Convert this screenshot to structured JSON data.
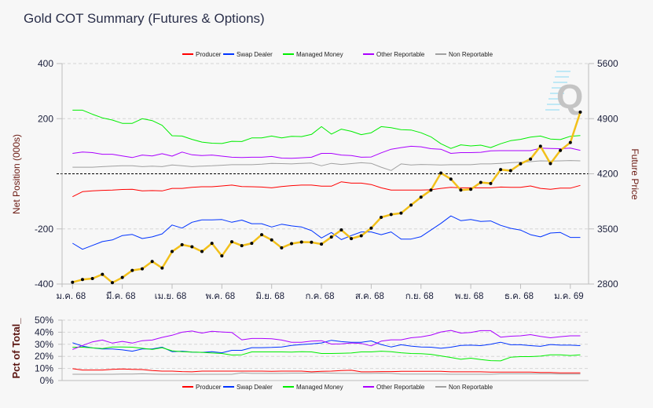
{
  "title": "Gold COT Summary (Futures & Options)",
  "watermark": "Q",
  "legend": [
    {
      "name": "Producer",
      "color": "#ff0000"
    },
    {
      "name": "Swap Dealer",
      "color": "#0033ff"
    },
    {
      "name": "Managed Money",
      "color": "#00ee00"
    },
    {
      "name": "Other Reportable",
      "color": "#aa00ff"
    },
    {
      "name": "Non Reportable",
      "color": "#a0a0a0"
    }
  ],
  "chart_data": [
    {
      "type": "line",
      "title": "Gold COT Summary (Futures & Options)",
      "ylabel": "Net Position (000s)",
      "y2label": "Future Price",
      "ylim": [
        -400,
        400
      ],
      "y2lim": [
        2800,
        5600
      ],
      "yticks": [
        "400",
        "200",
        "-200",
        "-400"
      ],
      "y2ticks": [
        "5600",
        "4900",
        "4200",
        "3500",
        "2800"
      ],
      "grid": true,
      "legend_position": "top",
      "xtick_labels": [
        "ม.ค. 68",
        "มี.ค. 68",
        "เม.ย. 68",
        "พ.ค. 68",
        "มิ.ย. 68",
        "ก.ค. 68",
        "ส.ค. 68",
        "ก.ย. 68",
        "พ.ย. 68",
        "ธ.ค. 68",
        "ม.ค. 69"
      ],
      "xtick_every": 5,
      "series": [
        {
          "name": "Producer",
          "color": "#ff0000",
          "values": [
            -83,
            -65,
            -62,
            -60,
            -59,
            -57,
            -56,
            -62,
            -61,
            -62,
            -53,
            -53,
            -49,
            -47,
            -47,
            -44,
            -41,
            -46,
            -47,
            -48,
            -51,
            -46,
            -43,
            -41,
            -41,
            -45,
            -45,
            -29,
            -34,
            -34,
            -39,
            -51,
            -59,
            -59,
            -59,
            -59,
            -58,
            -53,
            -49,
            -51,
            -51,
            -51,
            -51,
            -48,
            -49,
            -49,
            -44,
            -53,
            -56,
            -52,
            -52,
            -42
          ]
        },
        {
          "name": "Swap Dealer",
          "color": "#0033ff",
          "values": [
            -252,
            -274,
            -260,
            -246,
            -240,
            -224,
            -220,
            -235,
            -229,
            -218,
            -186,
            -197,
            -176,
            -167,
            -167,
            -166,
            -176,
            -168,
            -181,
            -181,
            -193,
            -183,
            -189,
            -193,
            -206,
            -233,
            -213,
            -239,
            -224,
            -211,
            -211,
            -221,
            -211,
            -237,
            -237,
            -228,
            -204,
            -180,
            -153,
            -170,
            -166,
            -173,
            -171,
            -187,
            -198,
            -204,
            -221,
            -229,
            -215,
            -213,
            -231,
            -231
          ]
        },
        {
          "name": "Managed Money",
          "color": "#00ee00",
          "values": [
            231,
            231,
            216,
            203,
            195,
            183,
            183,
            200,
            193,
            176,
            138,
            137,
            125,
            115,
            111,
            110,
            118,
            117,
            130,
            130,
            137,
            130,
            136,
            135,
            143,
            171,
            144,
            162,
            154,
            142,
            149,
            171,
            167,
            160,
            159,
            149,
            134,
            109,
            92,
            105,
            101,
            104,
            95,
            109,
            120,
            125,
            133,
            137,
            126,
            124,
            136,
            139
          ]
        },
        {
          "name": "Other Reportable",
          "color": "#aa00ff",
          "values": [
            74,
            79,
            77,
            71,
            71,
            65,
            59,
            68,
            65,
            73,
            64,
            79,
            69,
            66,
            68,
            64,
            60,
            59,
            60,
            60,
            63,
            57,
            56,
            58,
            60,
            74,
            74,
            68,
            66,
            60,
            61,
            76,
            89,
            95,
            100,
            98,
            91,
            89,
            74,
            77,
            77,
            78,
            83,
            84,
            84,
            84,
            84,
            93,
            92,
            91,
            93,
            85
          ]
        },
        {
          "name": "Non Reportable",
          "color": "#a0a0a0",
          "values": [
            24,
            24,
            24,
            26,
            28,
            29,
            29,
            26,
            28,
            26,
            32,
            29,
            26,
            28,
            29,
            31,
            33,
            33,
            33,
            35,
            38,
            37,
            36,
            38,
            39,
            29,
            38,
            34,
            37,
            40,
            38,
            24,
            12,
            36,
            32,
            34,
            33,
            32,
            33,
            33,
            33,
            36,
            36,
            38,
            40,
            42,
            44,
            47,
            46,
            47,
            48,
            47
          ]
        },
        {
          "name": "Future Price",
          "axis": "right",
          "color": "#f2c01a",
          "values": [
            2823,
            2857,
            2870,
            2923,
            2817,
            2883,
            2973,
            2993,
            3087,
            3003,
            3213,
            3300,
            3273,
            3213,
            3317,
            3157,
            3337,
            3287,
            3317,
            3427,
            3360,
            3260,
            3313,
            3333,
            3330,
            3307,
            3397,
            3487,
            3377,
            3413,
            3510,
            3647,
            3683,
            3700,
            3803,
            3903,
            3993,
            4210,
            4133,
            3993,
            4003,
            4090,
            4077,
            4253,
            4240,
            4327,
            4387,
            4550,
            4330,
            4497,
            4597,
            4983
          ]
        }
      ]
    },
    {
      "type": "line",
      "ylabel": "Pct of Total_",
      "ylim": [
        0,
        50
      ],
      "yticks": [
        "50%",
        "40%",
        "30%",
        "20%",
        "10%",
        "0%"
      ],
      "legend_position": "bottom",
      "series": [
        {
          "name": "Producer",
          "color": "#ff0000",
          "values": [
            9.8,
            8.7,
            8.7,
            8.7,
            9.3,
            9.6,
            9.3,
            9.1,
            8.3,
            7.8,
            7.8,
            7.4,
            7.2,
            7.8,
            7.8,
            7.8,
            7.8,
            7.8,
            7.8,
            7.8,
            7.6,
            7.8,
            7.8,
            7.8,
            7.2,
            7.6,
            7.8,
            8.3,
            8.5,
            7.2,
            7.2,
            7.4,
            7.4,
            7.6,
            7.6,
            7.6,
            7.6,
            7.6,
            7.2,
            7.2,
            7.2,
            7.2,
            7.0,
            7.0,
            7.0,
            7.0,
            7.0,
            6.7,
            6.7,
            6.3,
            6.3,
            6.3
          ]
        },
        {
          "name": "Swap Dealer",
          "color": "#0033ff",
          "values": [
            31.3,
            28.5,
            27,
            26.1,
            26.1,
            25.4,
            24.3,
            26.1,
            26.1,
            27.6,
            23.9,
            24.3,
            23.5,
            23.3,
            23.9,
            23,
            25,
            25,
            27.2,
            27.2,
            27.4,
            27.8,
            29.1,
            29.8,
            30.4,
            31.1,
            33.3,
            32.2,
            31.7,
            31.7,
            32.8,
            29.8,
            27.8,
            29.6,
            28.5,
            27.8,
            27.6,
            26.7,
            27.6,
            29.1,
            29.3,
            28.9,
            30,
            31.7,
            29.6,
            29.6,
            28.9,
            28.3,
            29.8,
            29.3,
            29.3,
            28.9
          ]
        },
        {
          "name": "Managed Money",
          "color": "#00ee00",
          "values": [
            27.6,
            27.6,
            27,
            26.5,
            27.8,
            27.8,
            27.6,
            26.7,
            25.7,
            27.2,
            24.6,
            23.9,
            23.5,
            23.3,
            22.8,
            22.4,
            21.1,
            21.3,
            23.7,
            23.7,
            23.7,
            23.7,
            23.5,
            23.9,
            23.7,
            22.4,
            22.4,
            22.6,
            22.8,
            23.7,
            23.7,
            24.3,
            23.9,
            23,
            22.4,
            22.2,
            21.7,
            20.4,
            19.1,
            17.6,
            18.5,
            17.4,
            16.5,
            16.3,
            19.3,
            19.8,
            19.8,
            20.2,
            21.3,
            21.3,
            20.7,
            21.3
          ]
        },
        {
          "name": "Other Reportable",
          "color": "#aa00ff",
          "values": [
            25.7,
            29,
            32,
            33.5,
            31,
            32.4,
            31,
            33,
            33.5,
            35.7,
            37.5,
            40,
            41,
            39.3,
            40.7,
            40.2,
            39.8,
            33.7,
            34.8,
            34.8,
            34.6,
            33.5,
            31.7,
            31.7,
            32.6,
            33,
            30.2,
            30.4,
            31.1,
            30.7,
            28.7,
            32.6,
            33.7,
            33.7,
            35.4,
            36.1,
            37.6,
            40.2,
            41.5,
            39.3,
            39.8,
            41.3,
            41.3,
            35.9,
            36.7,
            37,
            38,
            36.5,
            35.4,
            36.3,
            37,
            37
          ]
        },
        {
          "name": "Non Reportable",
          "color": "#a0a0a0",
          "values": [
            5.2,
            5.2,
            5.2,
            5.2,
            5.2,
            5.4,
            5.4,
            5.6,
            5.4,
            5.2,
            5.2,
            5.2,
            5.2,
            5.2,
            5.2,
            5.2,
            5.2,
            6.3,
            5.9,
            5.9,
            5.9,
            5.9,
            6.1,
            6.1,
            6.3,
            6.3,
            6.1,
            5.9,
            5.9,
            5.9,
            5.9,
            6.1,
            5.9,
            5.4,
            5.4,
            5.4,
            5.4,
            5.4,
            5.2,
            5.2,
            5.2,
            5.2,
            5.2,
            5.6,
            5.6,
            5.6,
            5.6,
            5.6,
            5.6,
            5.4,
            5.4,
            5.4
          ]
        }
      ]
    }
  ]
}
